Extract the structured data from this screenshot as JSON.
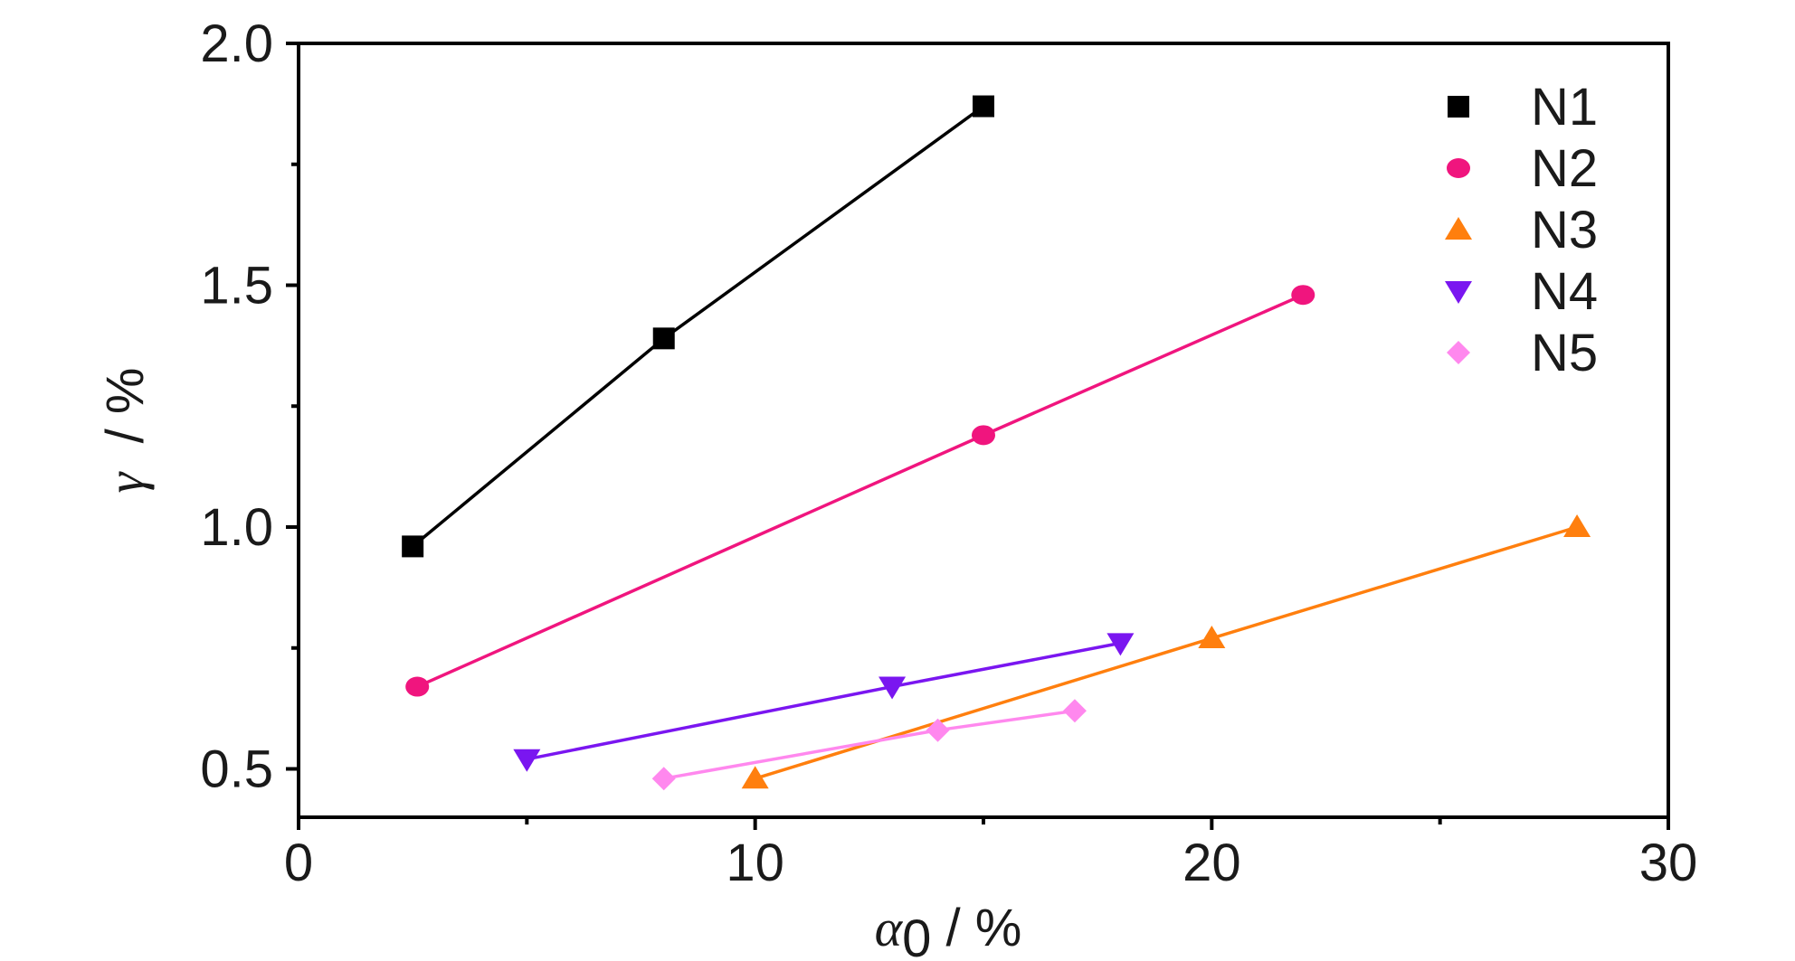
{
  "chart_data": {
    "type": "scatter",
    "xlabel": {
      "symbol": "α",
      "subscript": "0",
      "unit": " / %"
    },
    "ylabel": {
      "symbol": "γ",
      "unit": "  / %"
    },
    "xlim": [
      0,
      30
    ],
    "ylim": [
      0.4,
      2.0
    ],
    "x_ticks": [
      0,
      10,
      20,
      30
    ],
    "x_tick_labels": [
      "0",
      "10",
      "20",
      "30"
    ],
    "x_minor_ticks": [
      5,
      15,
      25
    ],
    "y_ticks": [
      0.5,
      1.0,
      1.5,
      2.0
    ],
    "y_tick_labels": [
      "0.5",
      "1.0",
      "1.5",
      "2.0"
    ],
    "y_minor_ticks": [
      0.75,
      1.25,
      1.75
    ],
    "grid": false,
    "legend_position": "top-right",
    "series": [
      {
        "name": "N1",
        "marker": "square",
        "color": "#000000",
        "x": [
          2.5,
          8,
          15
        ],
        "y": [
          0.96,
          1.39,
          1.87
        ]
      },
      {
        "name": "N2",
        "marker": "circle",
        "color": "#f0157e",
        "x": [
          2.6,
          15,
          22
        ],
        "y": [
          0.67,
          1.19,
          1.48
        ]
      },
      {
        "name": "N3",
        "marker": "triangle-up",
        "color": "#ff7f0e",
        "x": [
          10,
          20,
          28
        ],
        "y": [
          0.48,
          0.77,
          1.0
        ]
      },
      {
        "name": "N4",
        "marker": "triangle-down",
        "color": "#7a16f0",
        "x": [
          5,
          13,
          18
        ],
        "y": [
          0.52,
          0.67,
          0.76
        ]
      },
      {
        "name": "N5",
        "marker": "diamond",
        "color": "#ff88ee",
        "x": [
          8,
          14,
          17
        ],
        "y": [
          0.48,
          0.58,
          0.62
        ]
      }
    ]
  }
}
